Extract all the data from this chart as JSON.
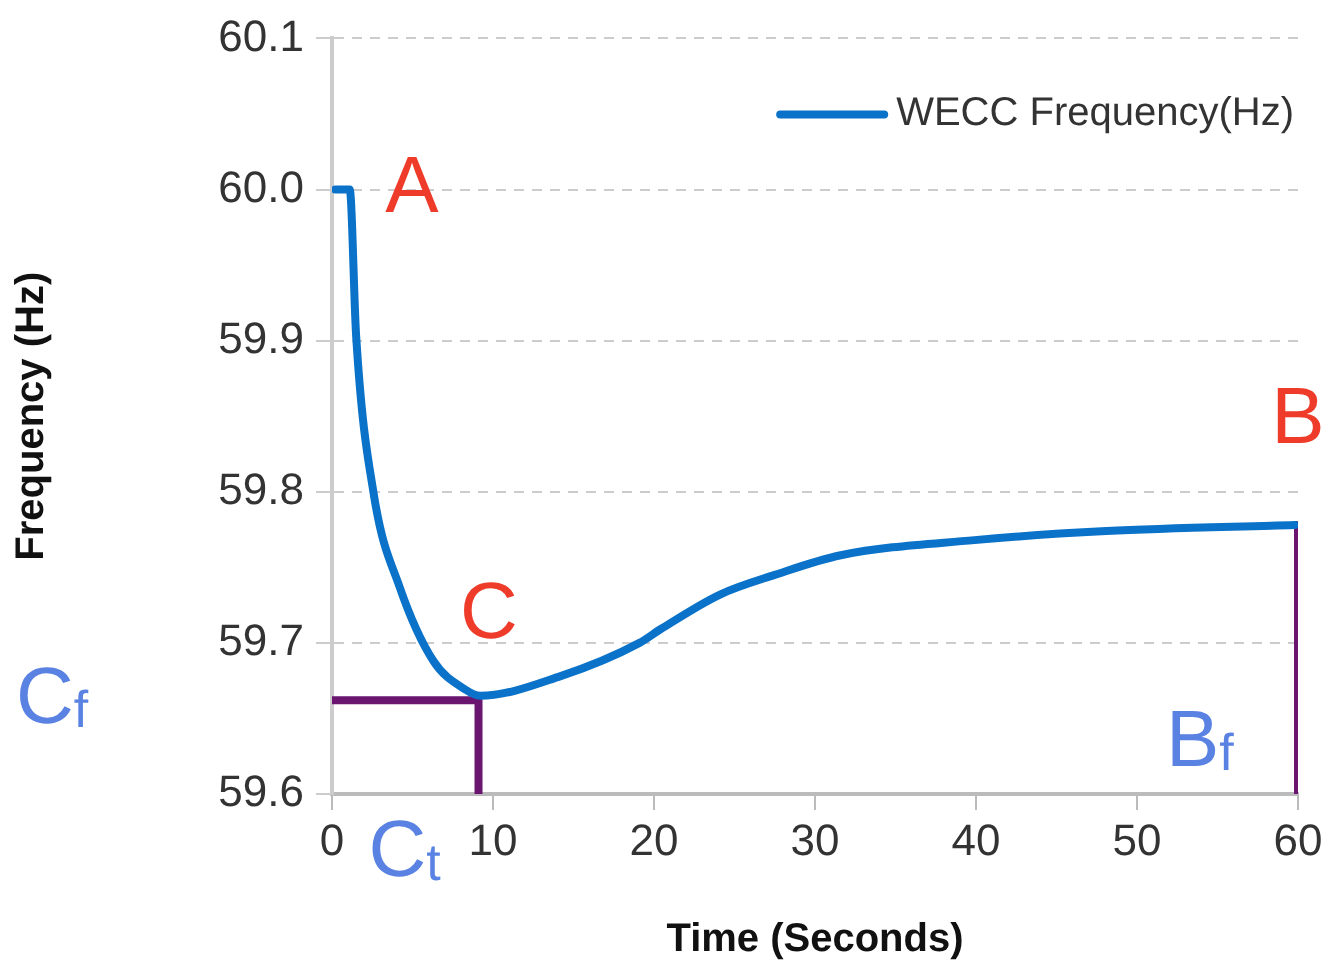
{
  "chart_data": {
    "type": "line",
    "xlabel": "Time (Seconds)",
    "ylabel": "Frequency (Hz)",
    "xlim": [
      0,
      60
    ],
    "xticks": [
      0,
      10,
      20,
      30,
      40,
      50,
      60
    ],
    "ylim": [
      59.6,
      60.1
    ],
    "yticks": [
      59.6,
      59.7,
      59.8,
      59.9,
      {
        "value": 60.0,
        "label": "60.0"
      },
      60.1
    ],
    "grid": "y",
    "legend": "top right",
    "marker": "none",
    "line_style": "solid",
    "series": [
      {
        "name": "WECC Frequency(Hz)",
        "color": "#0a72c8",
        "x": [
          0.2,
          1.1,
          1.5,
          2.6,
          4.2,
          6.3,
          8.3,
          9.2,
          14.2,
          19.1,
          20.4,
          24.1,
          27.5,
          31.6,
          39.9,
          48.1,
          59.8
        ],
        "values": [
          60.0,
          60.0,
          59.903,
          59.798,
          59.737,
          59.688,
          59.669,
          59.665,
          59.678,
          59.7,
          59.709,
          59.732,
          59.745,
          59.758,
          59.768,
          59.774,
          59.778
        ]
      },
      {
        "color": "#6a1570",
        "x": [
          0,
          9.1,
          9.1
        ],
        "values": [
          59.662,
          59.662,
          59.6
        ]
      },
      {
        "color": "#6a1570",
        "x": [
          60,
          60
        ],
        "values": [
          59.6,
          59.778
        ]
      }
    ],
    "annotations": [
      {
        "text": "A",
        "x": 0.2,
        "y": 60.0
      },
      {
        "text": "C",
        "x": 9.2,
        "y": 59.665
      },
      {
        "text": "B",
        "x": 60,
        "y": 59.778
      },
      "C$_{f}$",
      {
        "text": "C$_{t}$",
        "x": 9.1,
        "y": 59.6
      },
      {
        "text": "B$_{f}$",
        "x": 60,
        "y": 59.6
      }
    ]
  }
}
